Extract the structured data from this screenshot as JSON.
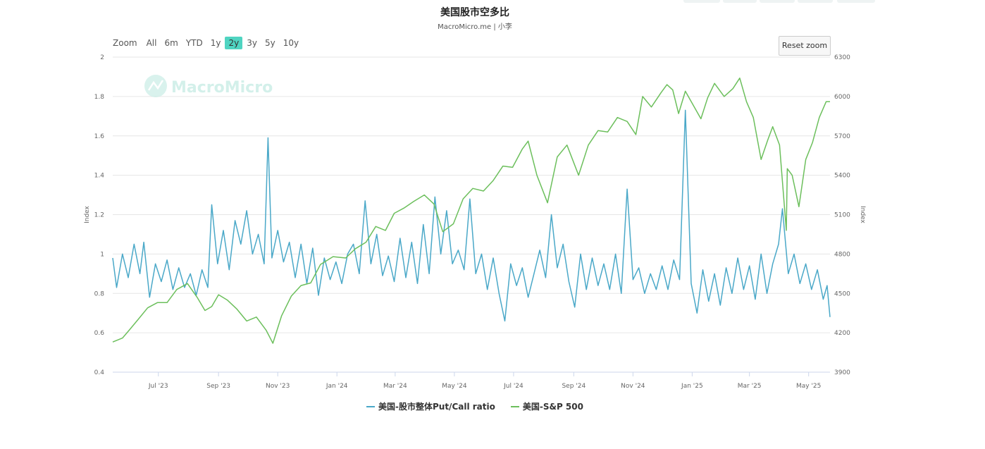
{
  "title": "美国股市空多比",
  "subtitle": "MacroMicro.me | 小李",
  "watermark": "MacroMicro",
  "zoom": {
    "label": "Zoom",
    "buttons": [
      "All",
      "6m",
      "YTD",
      "1y",
      "2y",
      "3y",
      "5y",
      "10y"
    ],
    "active": "2y"
  },
  "reset_zoom_label": "Reset zoom",
  "legend": [
    {
      "label": "美国-股市整体Put/Call ratio",
      "color": "#4aa8c8"
    },
    {
      "label": "美国-S&P 500",
      "color": "#6cbf5c"
    }
  ],
  "chart_data": {
    "type": "line",
    "x_range": [
      "2023-05-15",
      "2025-05-23"
    ],
    "x_ticks": [
      {
        "date": "2023-07-01",
        "label": "Jul '23"
      },
      {
        "date": "2023-09-01",
        "label": "Sep '23"
      },
      {
        "date": "2023-11-01",
        "label": "Nov '23"
      },
      {
        "date": "2024-01-01",
        "label": "Jan '24"
      },
      {
        "date": "2024-03-01",
        "label": "Mar '24"
      },
      {
        "date": "2024-05-01",
        "label": "May '24"
      },
      {
        "date": "2024-07-01",
        "label": "Jul '24"
      },
      {
        "date": "2024-09-01",
        "label": "Sep '24"
      },
      {
        "date": "2024-11-01",
        "label": "Nov '24"
      },
      {
        "date": "2025-01-01",
        "label": "Jan '25"
      },
      {
        "date": "2025-03-01",
        "label": "Mar '25"
      },
      {
        "date": "2025-05-01",
        "label": "May '25"
      }
    ],
    "y_left": {
      "title": "Index",
      "range": [
        0.4,
        2.0
      ],
      "ticks": [
        0.4,
        0.6,
        0.8,
        1,
        1.2,
        1.4,
        1.6,
        1.8,
        2
      ]
    },
    "y_right": {
      "title": "Index",
      "range": [
        3900,
        6300
      ],
      "ticks": [
        3900,
        4200,
        4500,
        4800,
        5100,
        5400,
        5700,
        6000,
        6300
      ]
    },
    "grid": true,
    "legend_position": "bottom",
    "series": [
      {
        "name": "美国-股市整体Put/Call ratio",
        "axis": "left",
        "color": "#4aa8c8",
        "points": [
          [
            "2023-05-15",
            0.98
          ],
          [
            "2023-05-19",
            0.83
          ],
          [
            "2023-05-25",
            1.0
          ],
          [
            "2023-05-31",
            0.88
          ],
          [
            "2023-06-06",
            1.05
          ],
          [
            "2023-06-12",
            0.9
          ],
          [
            "2023-06-16",
            1.06
          ],
          [
            "2023-06-22",
            0.78
          ],
          [
            "2023-06-28",
            0.95
          ],
          [
            "2023-07-04",
            0.86
          ],
          [
            "2023-07-10",
            0.97
          ],
          [
            "2023-07-16",
            0.82
          ],
          [
            "2023-07-22",
            0.93
          ],
          [
            "2023-07-28",
            0.83
          ],
          [
            "2023-08-03",
            0.9
          ],
          [
            "2023-08-09",
            0.79
          ],
          [
            "2023-08-15",
            0.92
          ],
          [
            "2023-08-21",
            0.83
          ],
          [
            "2023-08-25",
            1.25
          ],
          [
            "2023-08-31",
            0.95
          ],
          [
            "2023-09-06",
            1.12
          ],
          [
            "2023-09-12",
            0.92
          ],
          [
            "2023-09-18",
            1.17
          ],
          [
            "2023-09-24",
            1.05
          ],
          [
            "2023-09-30",
            1.22
          ],
          [
            "2023-10-06",
            1.0
          ],
          [
            "2023-10-12",
            1.1
          ],
          [
            "2023-10-18",
            0.95
          ],
          [
            "2023-10-22",
            1.59
          ],
          [
            "2023-10-26",
            0.98
          ],
          [
            "2023-11-01",
            1.12
          ],
          [
            "2023-11-07",
            0.96
          ],
          [
            "2023-11-13",
            1.06
          ],
          [
            "2023-11-19",
            0.88
          ],
          [
            "2023-11-25",
            1.05
          ],
          [
            "2023-12-01",
            0.85
          ],
          [
            "2023-12-07",
            1.03
          ],
          [
            "2023-12-13",
            0.79
          ],
          [
            "2023-12-19",
            0.98
          ],
          [
            "2023-12-25",
            0.87
          ],
          [
            "2023-12-31",
            0.96
          ],
          [
            "2024-01-06",
            0.85
          ],
          [
            "2024-01-12",
            1.0
          ],
          [
            "2024-01-18",
            1.05
          ],
          [
            "2024-01-24",
            0.9
          ],
          [
            "2024-01-30",
            1.27
          ],
          [
            "2024-02-05",
            0.95
          ],
          [
            "2024-02-11",
            1.1
          ],
          [
            "2024-02-17",
            0.89
          ],
          [
            "2024-02-23",
            0.99
          ],
          [
            "2024-02-29",
            0.86
          ],
          [
            "2024-03-06",
            1.08
          ],
          [
            "2024-03-12",
            0.88
          ],
          [
            "2024-03-18",
            1.06
          ],
          [
            "2024-03-24",
            0.85
          ],
          [
            "2024-03-30",
            1.15
          ],
          [
            "2024-04-05",
            0.9
          ],
          [
            "2024-04-11",
            1.29
          ],
          [
            "2024-04-17",
            1.0
          ],
          [
            "2024-04-23",
            1.22
          ],
          [
            "2024-04-29",
            0.95
          ],
          [
            "2024-05-05",
            1.02
          ],
          [
            "2024-05-11",
            0.92
          ],
          [
            "2024-05-17",
            1.28
          ],
          [
            "2024-05-23",
            0.9
          ],
          [
            "2024-05-29",
            1.0
          ],
          [
            "2024-06-04",
            0.82
          ],
          [
            "2024-06-10",
            0.98
          ],
          [
            "2024-06-16",
            0.8
          ],
          [
            "2024-06-22",
            0.66
          ],
          [
            "2024-06-28",
            0.95
          ],
          [
            "2024-07-04",
            0.84
          ],
          [
            "2024-07-10",
            0.93
          ],
          [
            "2024-07-16",
            0.78
          ],
          [
            "2024-07-22",
            0.9
          ],
          [
            "2024-07-28",
            1.02
          ],
          [
            "2024-08-03",
            0.88
          ],
          [
            "2024-08-09",
            1.2
          ],
          [
            "2024-08-15",
            0.93
          ],
          [
            "2024-08-21",
            1.05
          ],
          [
            "2024-08-27",
            0.86
          ],
          [
            "2024-09-02",
            0.73
          ],
          [
            "2024-09-08",
            1.0
          ],
          [
            "2024-09-14",
            0.82
          ],
          [
            "2024-09-20",
            0.98
          ],
          [
            "2024-09-26",
            0.84
          ],
          [
            "2024-10-02",
            0.95
          ],
          [
            "2024-10-08",
            0.82
          ],
          [
            "2024-10-14",
            1.0
          ],
          [
            "2024-10-20",
            0.8
          ],
          [
            "2024-10-26",
            1.33
          ],
          [
            "2024-11-01",
            0.87
          ],
          [
            "2024-11-07",
            0.93
          ],
          [
            "2024-11-13",
            0.8
          ],
          [
            "2024-11-19",
            0.9
          ],
          [
            "2024-11-25",
            0.82
          ],
          [
            "2024-12-01",
            0.94
          ],
          [
            "2024-12-07",
            0.82
          ],
          [
            "2024-12-13",
            0.97
          ],
          [
            "2024-12-19",
            0.87
          ],
          [
            "2024-12-25",
            1.73
          ],
          [
            "2024-12-31",
            0.85
          ],
          [
            "2025-01-06",
            0.7
          ],
          [
            "2025-01-12",
            0.92
          ],
          [
            "2025-01-18",
            0.76
          ],
          [
            "2025-01-24",
            0.9
          ],
          [
            "2025-01-30",
            0.74
          ],
          [
            "2025-02-05",
            0.93
          ],
          [
            "2025-02-11",
            0.8
          ],
          [
            "2025-02-17",
            0.98
          ],
          [
            "2025-02-23",
            0.82
          ],
          [
            "2025-03-01",
            0.94
          ],
          [
            "2025-03-07",
            0.77
          ],
          [
            "2025-03-13",
            1.0
          ],
          [
            "2025-03-19",
            0.8
          ],
          [
            "2025-03-25",
            0.95
          ],
          [
            "2025-03-31",
            1.05
          ],
          [
            "2025-04-04",
            1.23
          ],
          [
            "2025-04-10",
            0.9
          ],
          [
            "2025-04-16",
            1.0
          ],
          [
            "2025-04-22",
            0.85
          ],
          [
            "2025-04-28",
            0.95
          ],
          [
            "2025-05-04",
            0.82
          ],
          [
            "2025-05-10",
            0.92
          ],
          [
            "2025-05-16",
            0.77
          ],
          [
            "2025-05-20",
            0.84
          ],
          [
            "2025-05-23",
            0.68
          ]
        ]
      },
      {
        "name": "美国-S&P 500",
        "axis": "right",
        "color": "#6cbf5c",
        "points": [
          [
            "2023-05-15",
            4130
          ],
          [
            "2023-05-25",
            4160
          ],
          [
            "2023-06-01",
            4220
          ],
          [
            "2023-06-10",
            4300
          ],
          [
            "2023-06-20",
            4390
          ],
          [
            "2023-06-30",
            4430
          ],
          [
            "2023-07-10",
            4430
          ],
          [
            "2023-07-20",
            4530
          ],
          [
            "2023-07-31",
            4575
          ],
          [
            "2023-08-10",
            4470
          ],
          [
            "2023-08-18",
            4370
          ],
          [
            "2023-08-25",
            4400
          ],
          [
            "2023-09-01",
            4490
          ],
          [
            "2023-09-10",
            4450
          ],
          [
            "2023-09-20",
            4380
          ],
          [
            "2023-09-30",
            4290
          ],
          [
            "2023-10-10",
            4320
          ],
          [
            "2023-10-20",
            4220
          ],
          [
            "2023-10-27",
            4120
          ],
          [
            "2023-11-05",
            4330
          ],
          [
            "2023-11-15",
            4480
          ],
          [
            "2023-11-25",
            4560
          ],
          [
            "2023-12-05",
            4580
          ],
          [
            "2023-12-15",
            4720
          ],
          [
            "2023-12-28",
            4780
          ],
          [
            "2024-01-10",
            4770
          ],
          [
            "2024-01-20",
            4840
          ],
          [
            "2024-01-31",
            4890
          ],
          [
            "2024-02-10",
            5010
          ],
          [
            "2024-02-20",
            4980
          ],
          [
            "2024-02-29",
            5110
          ],
          [
            "2024-03-10",
            5150
          ],
          [
            "2024-03-20",
            5200
          ],
          [
            "2024-03-31",
            5250
          ],
          [
            "2024-04-10",
            5180
          ],
          [
            "2024-04-19",
            4970
          ],
          [
            "2024-04-30",
            5030
          ],
          [
            "2024-05-10",
            5220
          ],
          [
            "2024-05-20",
            5300
          ],
          [
            "2024-05-31",
            5280
          ],
          [
            "2024-06-10",
            5360
          ],
          [
            "2024-06-20",
            5470
          ],
          [
            "2024-06-30",
            5460
          ],
          [
            "2024-07-10",
            5600
          ],
          [
            "2024-07-16",
            5660
          ],
          [
            "2024-07-25",
            5400
          ],
          [
            "2024-08-05",
            5190
          ],
          [
            "2024-08-15",
            5540
          ],
          [
            "2024-08-25",
            5630
          ],
          [
            "2024-09-06",
            5400
          ],
          [
            "2024-09-16",
            5630
          ],
          [
            "2024-09-26",
            5740
          ],
          [
            "2024-10-06",
            5730
          ],
          [
            "2024-10-16",
            5840
          ],
          [
            "2024-10-26",
            5810
          ],
          [
            "2024-11-04",
            5710
          ],
          [
            "2024-11-11",
            6000
          ],
          [
            "2024-11-20",
            5920
          ],
          [
            "2024-11-30",
            6030
          ],
          [
            "2024-12-06",
            6090
          ],
          [
            "2024-12-12",
            6050
          ],
          [
            "2024-12-18",
            5870
          ],
          [
            "2024-12-25",
            6040
          ],
          [
            "2025-01-10",
            5830
          ],
          [
            "2025-01-17",
            5990
          ],
          [
            "2025-01-24",
            6100
          ],
          [
            "2025-02-03",
            6000
          ],
          [
            "2025-02-12",
            6060
          ],
          [
            "2025-02-19",
            6140
          ],
          [
            "2025-02-26",
            5960
          ],
          [
            "2025-03-05",
            5840
          ],
          [
            "2025-03-13",
            5520
          ],
          [
            "2025-03-20",
            5670
          ],
          [
            "2025-03-25",
            5770
          ],
          [
            "2025-04-01",
            5630
          ],
          [
            "2025-04-08",
            4980
          ],
          [
            "2025-04-09",
            5450
          ],
          [
            "2025-04-14",
            5400
          ],
          [
            "2025-04-21",
            5160
          ],
          [
            "2025-04-28",
            5520
          ],
          [
            "2025-05-05",
            5650
          ],
          [
            "2025-05-12",
            5840
          ],
          [
            "2025-05-19",
            5960
          ],
          [
            "2025-05-23",
            5960
          ]
        ]
      }
    ]
  }
}
